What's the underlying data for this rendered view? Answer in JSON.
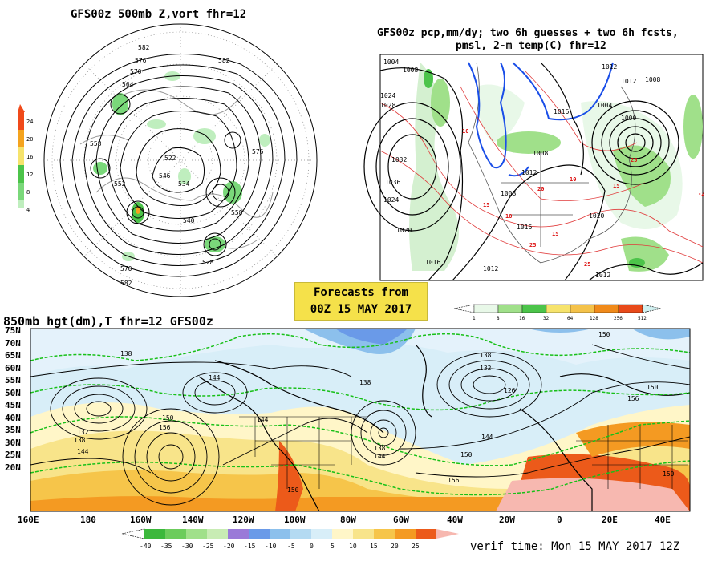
{
  "panel_500mb": {
    "title": "GFS00z  500mb Z,vort   fhr=12",
    "height_labels": [
      "582",
      "576",
      "570",
      "564",
      "558",
      "552",
      "546",
      "540",
      "534",
      "528",
      "522"
    ],
    "colorbar": {
      "labels": [
        "24",
        "20",
        "16",
        "12",
        "8",
        "4"
      ],
      "colors": [
        "#f04a1a",
        "#f4a31e",
        "#f6e36c",
        "#4cc44a",
        "#7ad87a",
        "#bfeebe"
      ]
    }
  },
  "panel_precip": {
    "title_line1": "GFS00z pcp,mm/dy; two 6h guesses + two 6h fcsts,",
    "title_line2": "pmsl, 2-m temp(C)  fhr=12",
    "isobar_labels": [
      "1004",
      "1008",
      "1024",
      "1028",
      "1032",
      "1036",
      "1024",
      "1020",
      "1016",
      "1012",
      "1008",
      "1016",
      "1012",
      "1012",
      "1000",
      "1004",
      "1008",
      "1012",
      "1016",
      "1020",
      "1008",
      "1012"
    ],
    "temp_labels": [
      "10",
      "15",
      "10",
      "15",
      "25",
      "10",
      "15",
      "20",
      "25",
      "-2",
      "25"
    ],
    "colorbar": {
      "labels": [
        "1",
        "8",
        "16",
        "32",
        "64",
        "128",
        "256",
        "512"
      ],
      "colors": [
        "#e8f8e8",
        "#a0e08a",
        "#4cc44a",
        "#f6e36c",
        "#f4c24a",
        "#f08a1a",
        "#e84a1a",
        "#d0f0f0"
      ]
    }
  },
  "forecast_box": {
    "line1": "Forecasts from",
    "line2": "00Z 15 MAY 2017"
  },
  "panel_850mb": {
    "title": "850mb hgt(dm),T  fhr=12 GFS00z",
    "lat_labels": [
      "75N",
      "70N",
      "65N",
      "60N",
      "55N",
      "50N",
      "45N",
      "40N",
      "35N",
      "30N",
      "25N",
      "20N"
    ],
    "lon_labels": [
      "160E",
      "180",
      "160W",
      "140W",
      "120W",
      "100W",
      "80W",
      "60W",
      "40W",
      "20W",
      "0",
      "20E",
      "40E"
    ],
    "height_labels": [
      "138",
      "132",
      "138",
      "144",
      "150",
      "156",
      "144",
      "138",
      "144",
      "150",
      "156",
      "138",
      "132",
      "126",
      "144",
      "150",
      "156",
      "150",
      "156",
      "150",
      "138",
      "144"
    ],
    "colorbar": {
      "labels": [
        "-40",
        "-35",
        "-30",
        "-25",
        "-20",
        "-15",
        "-10",
        "-5",
        "0",
        "5",
        "10",
        "15",
        "20",
        "25"
      ],
      "colors": [
        "#3cb83c",
        "#6ccc5c",
        "#a0e08a",
        "#c8ecb4",
        "#9a7ad8",
        "#6a9ae8",
        "#8cc0ec",
        "#b4daf2",
        "#d8eef8",
        "#fff6c8",
        "#f8e48a",
        "#f6c54a",
        "#f49a22",
        "#ec5a1a",
        "#f7b8b0"
      ]
    }
  },
  "verif_time": "verif time: Mon 15 MAY 2017 12Z"
}
